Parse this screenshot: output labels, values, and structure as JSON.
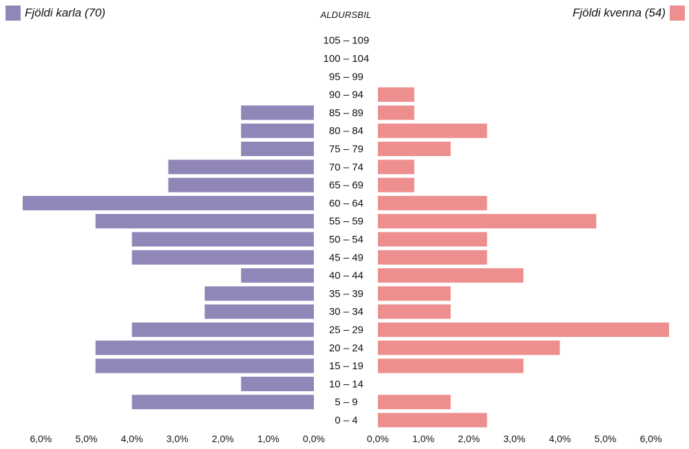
{
  "legend": {
    "male_label": "Fjöldi karla (70)",
    "female_label": "Fjöldi kvenna (54)"
  },
  "colors": {
    "male": "#9186b8",
    "female": "#ee8f8f"
  },
  "chart_data": {
    "type": "bar",
    "orientation": "horizontal-butterfly",
    "title": "ALDURSBIL",
    "categories": [
      "0 – 4",
      "5 – 9",
      "10 – 14",
      "15 – 19",
      "20 – 24",
      "25 – 29",
      "30 – 34",
      "35 – 39",
      "40 – 44",
      "45 – 49",
      "50 – 54",
      "55 – 59",
      "60 – 64",
      "65 – 69",
      "70 – 74",
      "75 – 79",
      "80 – 84",
      "85 – 89",
      "90 – 94",
      "95 – 99",
      "100 – 104",
      "105 – 109"
    ],
    "series": [
      {
        "name": "Fjöldi karla (70)",
        "side": "left",
        "values": [
          0,
          4.0,
          1.6,
          4.8,
          4.8,
          4.0,
          2.4,
          2.4,
          1.6,
          4.0,
          4.0,
          4.8,
          6.4,
          3.2,
          3.2,
          1.6,
          1.6,
          1.6,
          0,
          0,
          0,
          0
        ]
      },
      {
        "name": "Fjöldi kvenna (54)",
        "side": "right",
        "values": [
          2.4,
          1.6,
          0,
          3.2,
          4.0,
          6.4,
          1.6,
          1.6,
          3.2,
          2.4,
          2.4,
          4.8,
          2.4,
          0.8,
          0.8,
          1.6,
          2.4,
          0.8,
          0.8,
          0,
          0,
          0
        ]
      }
    ],
    "x_ticks": [
      "6,0%",
      "5,0%",
      "4,0%",
      "3,0%",
      "2,0%",
      "1,0%",
      "0,0%",
      "0,0%",
      "1,0%",
      "2,0%",
      "3,0%",
      "4,0%",
      "5,0%",
      "6,0%"
    ],
    "xlim": [
      0,
      6.4
    ],
    "grid": false
  }
}
